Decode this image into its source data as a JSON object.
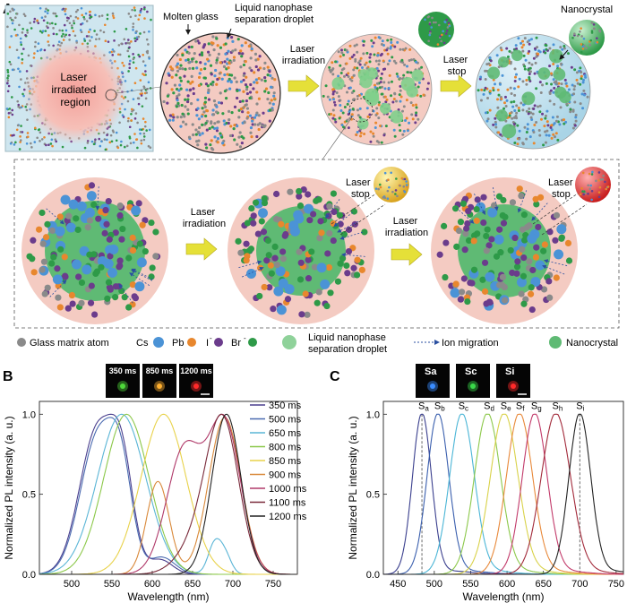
{
  "panels": {
    "a": "A",
    "b": "B",
    "c": "C"
  },
  "panel_a": {
    "laser_region_label": [
      "Laser",
      "irradiated",
      "region"
    ],
    "molten_glass": "Molten glass",
    "droplet_label": [
      "Liquid nanophase",
      "separation droplet"
    ],
    "laser_irradiation": [
      "Laser",
      "irradiation"
    ],
    "laser_stop": [
      "Laser",
      "stop"
    ],
    "nanocrystal": "Nanocrystal"
  },
  "legend": {
    "glass": "Glass matrix atom",
    "cs": "Cs",
    "pb": "Pb",
    "i": "I",
    "br": "Br",
    "minus": "-",
    "droplet": [
      "Liquid nanophase",
      "separation droplet"
    ],
    "ion": "Ion migration",
    "nano": "Nanocrystal",
    "colors": {
      "glass": "#8a8a8a",
      "cs": "#4b93d6",
      "pb": "#e8872e",
      "i": "#6b3c8c",
      "br": "#2e9a48",
      "droplet": "#8fd29a"
    }
  },
  "chart_data": [
    {
      "type": "line",
      "xlabel": "Wavelength (nm)",
      "ylabel": "Normalized PL intensity (a. u.)",
      "xlim": [
        460,
        780
      ],
      "ylim": [
        0,
        1.08
      ],
      "xticks": [
        500,
        550,
        600,
        650,
        700,
        750
      ],
      "yticks": [
        0.0,
        0.5,
        1.0
      ],
      "inset_labels": [
        "350 ms",
        "850 ms",
        "1200 ms"
      ],
      "inset_colors": [
        "#4fd83a",
        "#ffb030",
        "#ff2a2a"
      ],
      "series": [
        {
          "name": "350 ms",
          "color": "#4a3f8e",
          "peaks": [
            [
              532,
              1.0,
              22
            ],
            [
              563,
              0.6,
              14
            ],
            [
              610,
              0.1,
              15
            ]
          ]
        },
        {
          "name": "500 ms",
          "color": "#4a6ab0",
          "peaks": [
            [
              533,
              0.98,
              22
            ],
            [
              562,
              0.55,
              14
            ],
            [
              612,
              0.12,
              16
            ]
          ]
        },
        {
          "name": "650 ms",
          "color": "#5ab5d6",
          "peaks": [
            [
              562,
              1.0,
              30
            ],
            [
              677,
              0.18,
              8
            ],
            [
              690,
              0.12,
              8
            ]
          ]
        },
        {
          "name": "800 ms",
          "color": "#8cc84a",
          "peaks": [
            [
              568,
              1.0,
              28
            ]
          ]
        },
        {
          "name": "850 ms",
          "color": "#e8d24a",
          "peaks": [
            [
              614,
              1.0,
              28
            ]
          ]
        },
        {
          "name": "900 ms",
          "color": "#d9893a",
          "peaks": [
            [
              607,
              0.58,
              14
            ],
            [
              690,
              0.98,
              20
            ]
          ]
        },
        {
          "name": "1000 ms",
          "color": "#b03a6a",
          "peaks": [
            [
              640,
              0.84,
              22
            ],
            [
              690,
              1.0,
              20
            ]
          ]
        },
        {
          "name": "1100 ms",
          "color": "#7a2a3a",
          "peaks": [
            [
              688,
              1.0,
              20
            ],
            [
              660,
              0.25,
              25
            ]
          ]
        },
        {
          "name": "1200 ms",
          "color": "#222222",
          "peaks": [
            [
              692,
              1.0,
              18
            ]
          ]
        }
      ]
    },
    {
      "type": "line",
      "xlabel": "Wavelength (nm)",
      "ylabel": "Normalized PL intensity (a. u.)",
      "xlim": [
        430,
        760
      ],
      "ylim": [
        0,
        1.08
      ],
      "xticks": [
        450,
        500,
        550,
        600,
        650,
        700,
        750
      ],
      "yticks": [
        0.0,
        0.5,
        1.0
      ],
      "inset_labels": [
        "Sa",
        "Sc",
        "Si"
      ],
      "inset_colors": [
        "#3a8cff",
        "#3ad84a",
        "#ff2a2a"
      ],
      "series": [
        {
          "name": "Sa",
          "color": "#3a3f8e",
          "peak": 483,
          "width": 13
        },
        {
          "name": "Sb",
          "color": "#3a5fae",
          "peak": 505,
          "width": 15
        },
        {
          "name": "Sc",
          "color": "#4ab5d6",
          "peak": 538,
          "width": 17
        },
        {
          "name": "Sd",
          "color": "#8cc84a",
          "peak": 573,
          "width": 18
        },
        {
          "name": "Se",
          "color": "#d9d24a",
          "peak": 596,
          "width": 19
        },
        {
          "name": "Sf",
          "color": "#e8893a",
          "peak": 617,
          "width": 18
        },
        {
          "name": "Sg",
          "color": "#c23a6a",
          "peak": 638,
          "width": 17
        },
        {
          "name": "Sh",
          "color": "#a22a3a",
          "peak": 667,
          "width": 20
        },
        {
          "name": "Si",
          "color": "#222222",
          "peak": 700,
          "width": 15
        }
      ],
      "dashed_lines": [
        483,
        700
      ]
    }
  ]
}
